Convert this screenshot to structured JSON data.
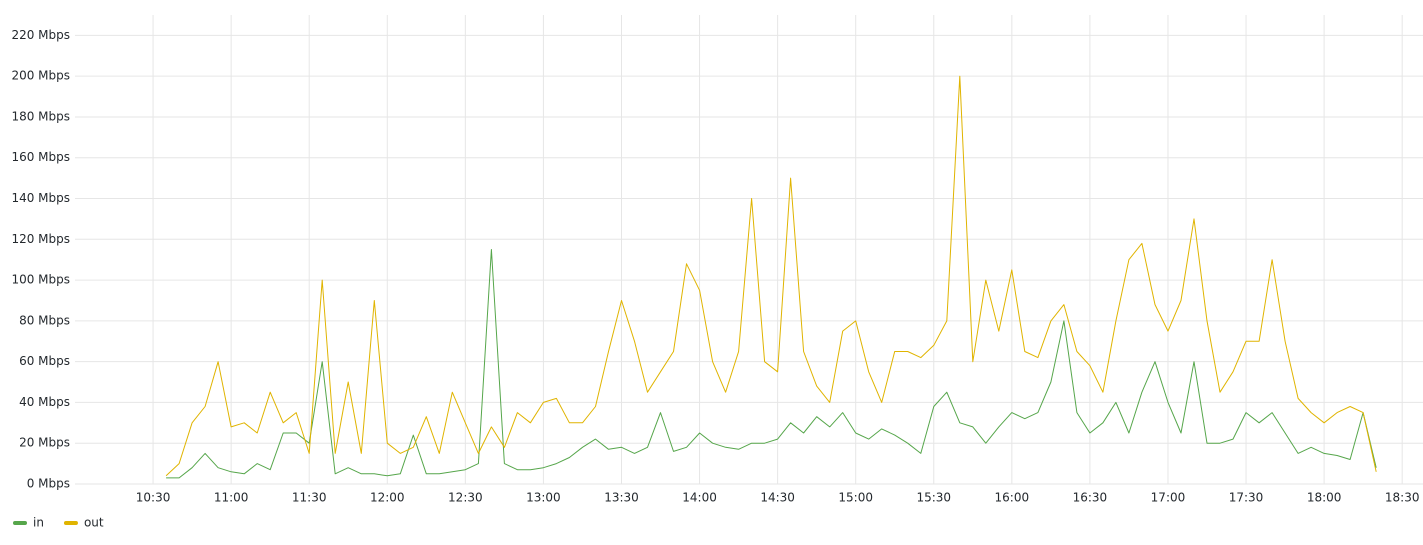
{
  "chart_data": {
    "type": "line",
    "x": [
      "10:35",
      "10:40",
      "10:45",
      "10:50",
      "10:55",
      "11:00",
      "11:05",
      "11:10",
      "11:15",
      "11:20",
      "11:25",
      "11:30",
      "11:35",
      "11:40",
      "11:45",
      "11:50",
      "11:55",
      "12:00",
      "12:05",
      "12:10",
      "12:15",
      "12:20",
      "12:25",
      "12:30",
      "12:35",
      "12:40",
      "12:45",
      "12:50",
      "12:55",
      "13:00",
      "13:05",
      "13:10",
      "13:15",
      "13:20",
      "13:25",
      "13:30",
      "13:35",
      "13:40",
      "13:45",
      "13:50",
      "13:55",
      "14:00",
      "14:05",
      "14:10",
      "14:15",
      "14:20",
      "14:25",
      "14:30",
      "14:35",
      "14:40",
      "14:45",
      "14:50",
      "14:55",
      "15:00",
      "15:05",
      "15:10",
      "15:15",
      "15:20",
      "15:25",
      "15:30",
      "15:35",
      "15:40",
      "15:45",
      "15:50",
      "15:55",
      "16:00",
      "16:05",
      "16:10",
      "16:15",
      "16:20",
      "16:25",
      "16:30",
      "16:35",
      "16:40",
      "16:45",
      "16:50",
      "16:55",
      "17:00",
      "17:05",
      "17:10",
      "17:15",
      "17:20",
      "17:25",
      "17:30",
      "17:35",
      "17:40",
      "17:45",
      "17:50",
      "17:55",
      "18:00",
      "18:05",
      "18:10",
      "18:15",
      "18:20"
    ],
    "series": [
      {
        "name": "in",
        "color": "#56a64b",
        "values": [
          3,
          3,
          8,
          15,
          8,
          6,
          5,
          10,
          7,
          25,
          25,
          20,
          60,
          5,
          8,
          5,
          5,
          4,
          5,
          24,
          5,
          5,
          6,
          7,
          10,
          115,
          10,
          7,
          7,
          8,
          10,
          13,
          18,
          22,
          17,
          18,
          15,
          18,
          35,
          16,
          18,
          25,
          20,
          18,
          17,
          20,
          20,
          22,
          30,
          25,
          33,
          28,
          35,
          25,
          22,
          27,
          24,
          20,
          15,
          38,
          45,
          30,
          28,
          20,
          28,
          35,
          32,
          35,
          50,
          80,
          35,
          25,
          30,
          40,
          25,
          45,
          60,
          40,
          25,
          60,
          20,
          20,
          22,
          35,
          30,
          35,
          25,
          15,
          18,
          15,
          14,
          12,
          35,
          8
        ]
      },
      {
        "name": "out",
        "color": "#e0b400",
        "values": [
          4,
          10,
          30,
          38,
          60,
          28,
          30,
          25,
          45,
          30,
          35,
          15,
          100,
          15,
          50,
          15,
          90,
          20,
          15,
          18,
          33,
          15,
          45,
          30,
          15,
          28,
          18,
          35,
          30,
          40,
          42,
          30,
          30,
          38,
          65,
          90,
          70,
          45,
          55,
          65,
          108,
          95,
          60,
          45,
          65,
          140,
          60,
          55,
          150,
          65,
          48,
          40,
          75,
          80,
          55,
          40,
          65,
          65,
          62,
          68,
          80,
          200,
          60,
          100,
          75,
          105,
          65,
          62,
          80,
          88,
          65,
          58,
          45,
          80,
          110,
          118,
          88,
          75,
          90,
          130,
          80,
          45,
          55,
          70,
          70,
          110,
          70,
          42,
          35,
          30,
          35,
          38,
          35,
          6
        ]
      }
    ],
    "xlim": [
      "10:00",
      "18:38"
    ],
    "xticks": [
      "10:30",
      "11:00",
      "11:30",
      "12:00",
      "12:30",
      "13:00",
      "13:30",
      "14:00",
      "14:30",
      "15:00",
      "15:30",
      "16:00",
      "16:30",
      "17:00",
      "17:30",
      "18:00",
      "18:30"
    ],
    "ylim": [
      0,
      230
    ],
    "yticks": [
      {
        "value": 0,
        "label": "0 Mbps"
      },
      {
        "value": 20,
        "label": "20 Mbps"
      },
      {
        "value": 40,
        "label": "40 Mbps"
      },
      {
        "value": 60,
        "label": "60 Mbps"
      },
      {
        "value": 80,
        "label": "80 Mbps"
      },
      {
        "value": 100,
        "label": "100 Mbps"
      },
      {
        "value": 120,
        "label": "120 Mbps"
      },
      {
        "value": 140,
        "label": "140 Mbps"
      },
      {
        "value": 160,
        "label": "160 Mbps"
      },
      {
        "value": 180,
        "label": "180 Mbps"
      },
      {
        "value": 200,
        "label": "200 Mbps"
      },
      {
        "value": 220,
        "label": "220 Mbps"
      }
    ],
    "grid": true
  }
}
